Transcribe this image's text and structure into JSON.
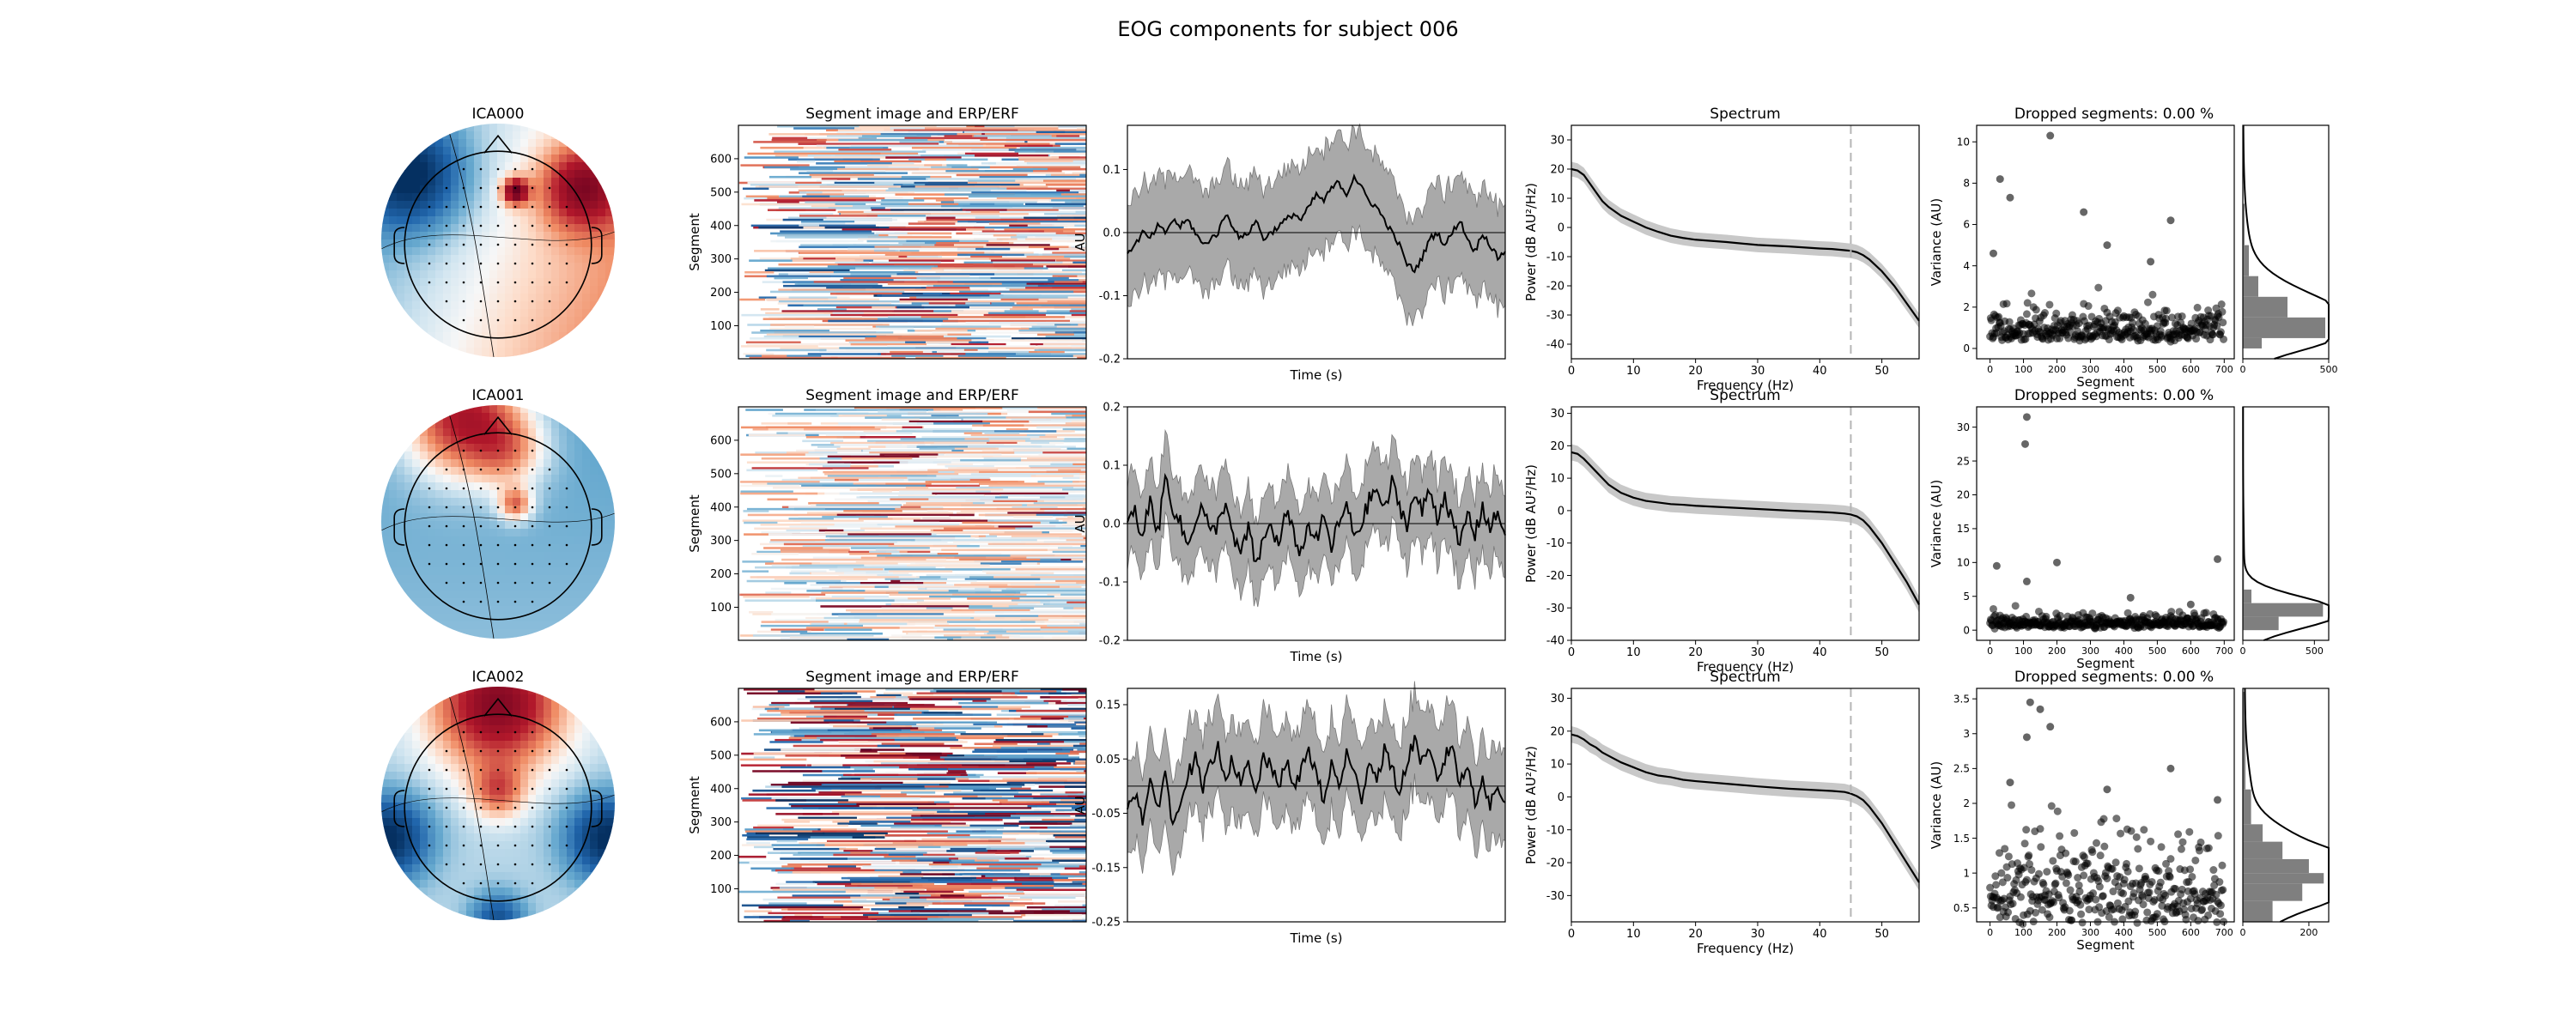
{
  "figure": {
    "suptitle": "EOG components for subject 006",
    "colors": {
      "red": "#b2182b",
      "blue": "#2166ac",
      "band": "#a9a9a9",
      "dashed": "#b5b5b5"
    }
  },
  "chart_data": [
    {
      "component": "ICA000",
      "topomap": {
        "title": "ICA000",
        "colormap": "RdBu_r"
      },
      "segment_image": {
        "title": "Segment image and ERP/ERF",
        "ylabel": "Segment",
        "yticks": [
          "100",
          "200",
          "300",
          "400",
          "500",
          "600"
        ],
        "ylim": [
          1,
          700
        ]
      },
      "erp": {
        "type": "line",
        "ylabel": "AU",
        "xlabel": "Time (s)",
        "ylim": [
          -0.2,
          0.17
        ],
        "yticks": [
          "0.1",
          "0.0",
          "-0.1",
          "-0.2"
        ],
        "ytick_values": [
          0.1,
          0.0,
          -0.1,
          -0.2
        ],
        "x": [
          0,
          2,
          4,
          6,
          8,
          10,
          12,
          14,
          16,
          18,
          20,
          22,
          24,
          26,
          28,
          30,
          32,
          34,
          36,
          38,
          40,
          42,
          44,
          46,
          48,
          50,
          52,
          54,
          56,
          58,
          60,
          62,
          64,
          66,
          68,
          70,
          72,
          74,
          76,
          78,
          80,
          82,
          84,
          86,
          88,
          90,
          92,
          94,
          96,
          98,
          100
        ],
        "mean": [
          -0.03,
          -0.02,
          0.0,
          -0.01,
          0.01,
          0.0,
          0.02,
          0.01,
          0.02,
          0.0,
          -0.02,
          -0.01,
          0.0,
          0.03,
          0.01,
          -0.01,
          0.0,
          0.02,
          -0.01,
          0.0,
          0.01,
          0.02,
          0.03,
          0.02,
          0.04,
          0.06,
          0.05,
          0.07,
          0.08,
          0.06,
          0.09,
          0.07,
          0.05,
          0.04,
          0.02,
          0.0,
          -0.02,
          -0.05,
          -0.06,
          -0.04,
          -0.01,
          0.0,
          -0.02,
          0.0,
          0.02,
          -0.01,
          -0.03,
          0.0,
          -0.02,
          -0.04,
          -0.03
        ],
        "band_halfwidth": 0.08
      },
      "spectrum": {
        "type": "line",
        "title": "Spectrum",
        "ylabel": "Power (dB AU²/Hz)",
        "xlabel": "Frequency (Hz)",
        "xlim": [
          0,
          56
        ],
        "ylim": [
          -45,
          35
        ],
        "xticks": [
          0,
          10,
          20,
          30,
          40,
          50
        ],
        "yticks": [
          30,
          20,
          10,
          0,
          -10,
          -20,
          -30,
          -40
        ],
        "vline": 45,
        "x": [
          0,
          1,
          2,
          3,
          4,
          5,
          6,
          8,
          10,
          12,
          14,
          16,
          18,
          20,
          25,
          30,
          35,
          40,
          42,
          44,
          45,
          46,
          47,
          48,
          50,
          52,
          54,
          56
        ],
        "y": [
          20,
          19.5,
          18,
          15,
          12,
          9,
          7,
          4,
          2,
          0,
          -1.5,
          -2.8,
          -3.6,
          -4.2,
          -5,
          -6,
          -6.5,
          -7.2,
          -7.4,
          -7.8,
          -8,
          -8.5,
          -9.5,
          -11,
          -15,
          -20,
          -26,
          -32
        ],
        "band_halfwidth": 2.5
      },
      "dropped": {
        "type": "scatter",
        "title": "Dropped segments: 0.00 %",
        "ylabel": "Variance (AU)",
        "xlabel": "Segment",
        "xlim": [
          -40,
          730
        ],
        "ylim": [
          -0.5,
          10.8
        ],
        "xticks": [
          0,
          100,
          200,
          300,
          400,
          500,
          600,
          700
        ],
        "yticks": [
          0,
          2,
          4,
          6,
          8,
          10
        ],
        "n_points": 700,
        "base": 0.7,
        "spread": 1.2,
        "outliers": [
          [
            180,
            10.3
          ],
          [
            30,
            8.2
          ],
          [
            60,
            7.3
          ],
          [
            280,
            6.6
          ],
          [
            540,
            6.2
          ],
          [
            10,
            4.6
          ],
          [
            350,
            5.0
          ],
          [
            480,
            4.2
          ]
        ],
        "hist": {
          "xlim": [
            0,
            500
          ],
          "xticks": [
            0,
            500
          ],
          "bins": [
            [
              0,
              0.5,
              110
            ],
            [
              0.5,
              1.5,
              480
            ],
            [
              1.5,
              2.5,
              260
            ],
            [
              2.5,
              3.5,
              90
            ],
            [
              3.5,
              5,
              35
            ],
            [
              5,
              7,
              10
            ],
            [
              7,
              11,
              3
            ]
          ]
        }
      }
    },
    {
      "component": "ICA001",
      "topomap": {
        "title": "ICA001",
        "colormap": "RdBu_r"
      },
      "segment_image": {
        "title": "Segment image and ERP/ERF",
        "ylabel": "Segment",
        "yticks": [
          "100",
          "200",
          "300",
          "400",
          "500",
          "600"
        ],
        "ylim": [
          1,
          700
        ]
      },
      "erp": {
        "type": "line",
        "ylabel": "AU",
        "xlabel": "Time (s)",
        "ylim": [
          -0.2,
          0.2
        ],
        "yticks": [
          "0.2",
          "0.1",
          "0.0",
          "-0.1",
          "-0.2"
        ],
        "ytick_values": [
          0.2,
          0.1,
          0.0,
          -0.1,
          -0.2
        ],
        "x": [
          0,
          2,
          4,
          6,
          8,
          10,
          12,
          14,
          16,
          18,
          20,
          22,
          24,
          26,
          28,
          30,
          32,
          34,
          36,
          38,
          40,
          42,
          44,
          46,
          48,
          50,
          52,
          54,
          56,
          58,
          60,
          62,
          64,
          66,
          68,
          70,
          72,
          74,
          76,
          78,
          80,
          82,
          84,
          86,
          88,
          90,
          92,
          94,
          96,
          98,
          100
        ],
        "mean": [
          0.0,
          0.02,
          -0.03,
          0.05,
          -0.02,
          0.08,
          0.03,
          0.0,
          -0.04,
          0.01,
          0.03,
          -0.02,
          0.0,
          0.04,
          -0.03,
          -0.05,
          -0.01,
          -0.07,
          -0.03,
          0.0,
          -0.04,
          0.02,
          -0.02,
          -0.05,
          0.0,
          -0.03,
          0.01,
          -0.04,
          0.0,
          0.03,
          -0.02,
          0.0,
          0.04,
          0.06,
          0.02,
          0.07,
          0.03,
          0.0,
          0.05,
          0.02,
          0.06,
          0.01,
          0.05,
          0.0,
          -0.04,
          0.02,
          -0.02,
          0.03,
          -0.01,
          0.02,
          -0.02
        ],
        "band_halfwidth": 0.07
      },
      "spectrum": {
        "type": "line",
        "title": "Spectrum",
        "ylabel": "Power (dB AU²/Hz)",
        "xlabel": "Frequency (Hz)",
        "xlim": [
          0,
          56
        ],
        "ylim": [
          -40,
          32
        ],
        "xticks": [
          0,
          10,
          20,
          30,
          40,
          50
        ],
        "yticks": [
          30,
          20,
          10,
          0,
          -10,
          -20,
          -30,
          -40
        ],
        "vline": 45,
        "x": [
          0,
          1,
          2,
          3,
          4,
          5,
          6,
          8,
          10,
          12,
          14,
          16,
          18,
          20,
          25,
          30,
          35,
          40,
          42,
          44,
          45,
          46,
          47,
          48,
          50,
          52,
          54,
          56
        ],
        "y": [
          18,
          17.5,
          16,
          14,
          12,
          10,
          8,
          5.5,
          4,
          3,
          2.5,
          2,
          1.8,
          1.5,
          1,
          0.5,
          0,
          -0.4,
          -0.6,
          -0.9,
          -1.2,
          -1.8,
          -3,
          -5,
          -10,
          -16,
          -22,
          -29
        ],
        "band_halfwidth": 2.5
      },
      "dropped": {
        "type": "scatter",
        "title": "Dropped segments: 0.00 %",
        "ylabel": "Variance (AU)",
        "xlabel": "Segment",
        "xlim": [
          -40,
          730
        ],
        "ylim": [
          -1.5,
          33
        ],
        "xticks": [
          0,
          100,
          200,
          300,
          400,
          500,
          600,
          700
        ],
        "yticks": [
          0,
          5,
          10,
          15,
          20,
          25,
          30
        ],
        "n_points": 700,
        "base": 0.5,
        "spread": 1.5,
        "outliers": [
          [
            110,
            31.5
          ],
          [
            105,
            27.5
          ],
          [
            200,
            10
          ],
          [
            680,
            10.5
          ],
          [
            20,
            9.5
          ],
          [
            110,
            7.2
          ],
          [
            420,
            4.8
          ],
          [
            600,
            3.8
          ]
        ],
        "hist": {
          "xlim": [
            0,
            600
          ],
          "xticks": [
            0,
            500
          ],
          "bins": [
            [
              0,
              2,
              250
            ],
            [
              2,
              4,
              560
            ],
            [
              4,
              6,
              60
            ],
            [
              6,
              12,
              8
            ],
            [
              12,
              33,
              2
            ]
          ]
        }
      }
    },
    {
      "component": "ICA002",
      "topomap": {
        "title": "ICA002",
        "colormap": "RdBu_r"
      },
      "segment_image": {
        "title": "Segment image and ERP/ERF",
        "ylabel": "Segment",
        "yticks": [
          "100",
          "200",
          "300",
          "400",
          "500",
          "600"
        ],
        "ylim": [
          1,
          700
        ]
      },
      "erp": {
        "type": "line",
        "ylabel": "AU",
        "xlabel": "Time (s)",
        "ylim": [
          -0.25,
          0.18
        ],
        "yticks": [
          "0.15",
          "0.05",
          "-0.05",
          "-0.15",
          "-0.25"
        ],
        "ytick_values": [
          0.15,
          0.05,
          -0.05,
          -0.15,
          -0.25
        ],
        "zero_line": 0.0,
        "x": [
          0,
          2,
          4,
          6,
          8,
          10,
          12,
          14,
          16,
          18,
          20,
          22,
          24,
          26,
          28,
          30,
          32,
          34,
          36,
          38,
          40,
          42,
          44,
          46,
          48,
          50,
          52,
          54,
          56,
          58,
          60,
          62,
          64,
          66,
          68,
          70,
          72,
          74,
          76,
          78,
          80,
          82,
          84,
          86,
          88,
          90,
          92,
          94,
          96,
          98,
          100
        ],
        "mean": [
          -0.03,
          -0.01,
          -0.06,
          0.0,
          -0.04,
          0.03,
          -0.08,
          -0.02,
          0.02,
          0.05,
          -0.01,
          0.04,
          0.07,
          0.02,
          0.05,
          0.0,
          0.04,
          -0.02,
          0.06,
          0.03,
          0.0,
          0.05,
          -0.01,
          0.03,
          0.07,
          0.02,
          -0.03,
          0.04,
          0.0,
          0.06,
          0.02,
          -0.02,
          0.05,
          0.01,
          0.07,
          0.03,
          -0.01,
          0.04,
          0.09,
          0.04,
          0.06,
          0.01,
          0.05,
          0.08,
          0.0,
          0.04,
          -0.03,
          0.02,
          -0.04,
          0.0,
          -0.03
        ],
        "band_halfwidth": 0.085
      },
      "spectrum": {
        "type": "line",
        "title": "Spectrum",
        "ylabel": "Power (dB AU²/Hz)",
        "xlabel": "Frequency (Hz)",
        "xlim": [
          0,
          56
        ],
        "ylim": [
          -38,
          33
        ],
        "xticks": [
          0,
          10,
          20,
          30,
          40,
          50
        ],
        "yticks": [
          30,
          20,
          10,
          0,
          -10,
          -20,
          -30
        ],
        "vline": 45,
        "x": [
          0,
          1,
          2,
          3,
          4,
          5,
          6,
          8,
          10,
          12,
          14,
          16,
          18,
          20,
          25,
          30,
          35,
          40,
          42,
          44,
          45,
          46,
          47,
          48,
          50,
          52,
          54,
          56
        ],
        "y": [
          19,
          18.5,
          17.5,
          16,
          15,
          13.5,
          12.5,
          10.5,
          9,
          7.5,
          6.5,
          6,
          5.2,
          4.8,
          4,
          3.2,
          2.5,
          2,
          1.8,
          1.5,
          1,
          0.2,
          -1,
          -3,
          -8,
          -14,
          -20,
          -26
        ],
        "band_halfwidth": 2.5
      },
      "dropped": {
        "type": "scatter",
        "title": "Dropped segments: 0.00 %",
        "ylabel": "Variance (AU)",
        "xlabel": "Segment",
        "xlim": [
          -40,
          730
        ],
        "ylim": [
          0.3,
          3.65
        ],
        "xticks": [
          0,
          100,
          200,
          300,
          400,
          500,
          600,
          700
        ],
        "yticks": [
          0.5,
          1.0,
          1.5,
          2.0,
          2.5,
          3.0,
          3.5
        ],
        "n_points": 700,
        "base": 0.55,
        "spread": 0.9,
        "outliers": [
          [
            120,
            3.45
          ],
          [
            150,
            3.35
          ],
          [
            110,
            2.95
          ],
          [
            180,
            3.1
          ],
          [
            540,
            2.5
          ],
          [
            60,
            2.3
          ],
          [
            350,
            2.2
          ],
          [
            680,
            2.05
          ]
        ],
        "hist": {
          "xlim": [
            0,
            260
          ],
          "xticks": [
            0,
            200
          ],
          "bins": [
            [
              0.3,
              0.6,
              90
            ],
            [
              0.6,
              0.85,
              180
            ],
            [
              0.85,
              1.0,
              245
            ],
            [
              1.0,
              1.2,
              200
            ],
            [
              1.2,
              1.45,
              120
            ],
            [
              1.45,
              1.7,
              60
            ],
            [
              1.7,
              2.2,
              25
            ],
            [
              2.2,
              3.6,
              8
            ]
          ]
        }
      }
    }
  ]
}
